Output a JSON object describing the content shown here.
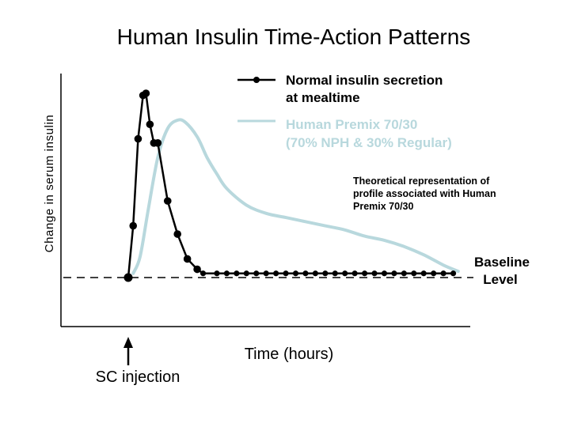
{
  "chart_data": {
    "type": "line",
    "title": "Human Insulin Time-Action Patterns",
    "ylabel": "Change in serum insulin",
    "xlabel": "Time (hours)",
    "xlim": [
      0,
      34
    ],
    "ylim": [
      -10,
      100
    ],
    "baseline_value": 0,
    "baseline_label": [
      "Baseline",
      "Level"
    ],
    "injection_label": "SC injection",
    "injection_x": 0,
    "note": [
      "Theoretical representation of",
      "profile associated with Human",
      "Premix 70/30"
    ],
    "series": [
      {
        "name": "Normal insulin secretion at mealtime",
        "legend_lines": [
          "Normal insulin secretion",
          "at mealtime"
        ],
        "color": "#000000",
        "markers": true,
        "x": [
          0,
          0.5,
          1.0,
          1.5,
          1.8,
          2.2,
          2.6,
          3.0,
          4.0,
          5.0,
          6.0,
          7.0,
          7.6,
          9,
          10,
          11,
          12,
          13,
          14,
          15,
          16,
          17,
          18,
          19,
          20,
          21,
          22,
          23,
          24,
          25,
          26,
          27,
          28,
          29,
          30,
          31,
          32,
          33
        ],
        "y": [
          0,
          25,
          67,
          88,
          89,
          74,
          65,
          65,
          37,
          21,
          9,
          4,
          2,
          2,
          2,
          2,
          2,
          2,
          2,
          2,
          2,
          2,
          2,
          2,
          2,
          2,
          2,
          2,
          2,
          2,
          2,
          2,
          2,
          2,
          2,
          2,
          2,
          2
        ]
      },
      {
        "name": "Human Premix 70/30 (70% NPH & 30% Regular)",
        "legend_lines": [
          "Human Premix 70/30",
          "(70% NPH & 30% Regular)"
        ],
        "color": "#b8d8dd",
        "markers": false,
        "x": [
          0.5,
          1.2,
          2.0,
          3.0,
          4.0,
          5.0,
          5.8,
          7.0,
          8.0,
          9.0,
          10.0,
          12.0,
          14.0,
          16.0,
          18.0,
          20.0,
          22.0,
          24.0,
          26.0,
          28.0,
          30.0,
          32.0,
          33.5
        ],
        "y": [
          2,
          10,
          32,
          58,
          72,
          76,
          75,
          68,
          58,
          50,
          43,
          35,
          31,
          29,
          27,
          25,
          23,
          20,
          18,
          15,
          11,
          6,
          3
        ]
      }
    ]
  }
}
